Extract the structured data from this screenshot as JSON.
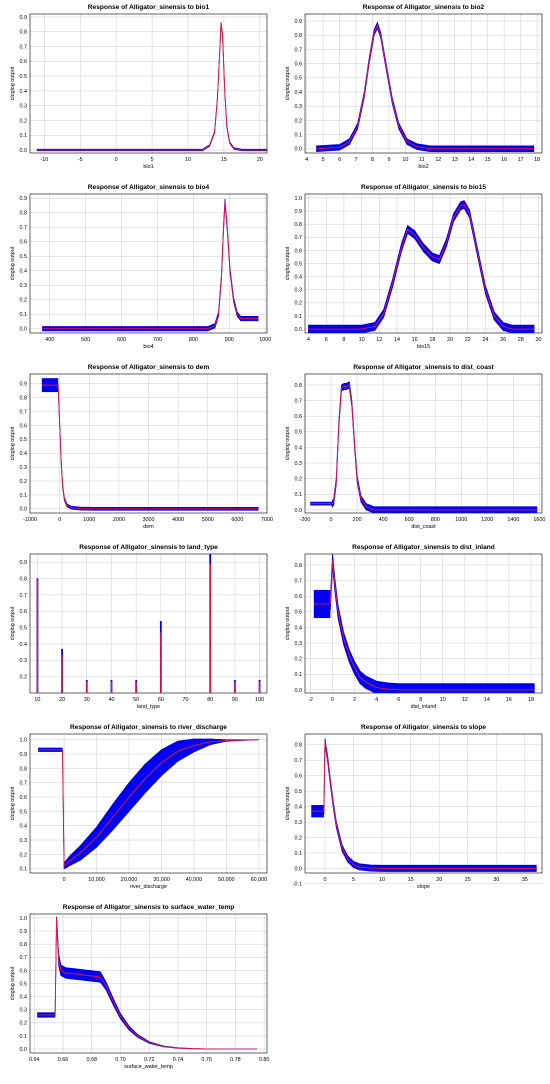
{
  "figure": {
    "species": "Alligator_sinensis",
    "ylabel": "cloglog output"
  },
  "chart_data": [
    {
      "type": "line",
      "title": "Response of Alligator_sinensis to bio1",
      "xlabel": "bio1",
      "ylabel": "cloglog output",
      "xlim": [
        -12,
        21
      ],
      "ylim": [
        -0.02,
        0.92
      ],
      "xticks": [
        -10,
        -5,
        0,
        5,
        10,
        15,
        20
      ],
      "yticks": [
        0.0,
        0.1,
        0.2,
        0.3,
        0.4,
        0.5,
        0.6,
        0.7,
        0.8,
        0.9
      ],
      "series": [
        {
          "x": [
            -11,
            12,
            13,
            13.7,
            14.1,
            14.4,
            14.6,
            14.8,
            15.1,
            15.4,
            15.8,
            16.4,
            17.5,
            21
          ],
          "y": [
            0,
            0,
            0.03,
            0.12,
            0.35,
            0.65,
            0.86,
            0.78,
            0.42,
            0.16,
            0.05,
            0.01,
            0,
            0
          ],
          "band": 0.005
        }
      ]
    },
    {
      "type": "line",
      "title": "Response of Alligator_sinensis to bio2",
      "xlabel": "bio2",
      "ylabel": "cloglog output",
      "xlim": [
        3.9,
        18.3
      ],
      "ylim": [
        -0.03,
        0.95
      ],
      "xticks": [
        4,
        5,
        6,
        7,
        8,
        9,
        10,
        11,
        12,
        13,
        14,
        15,
        16,
        17,
        18
      ],
      "yticks": [
        0.0,
        0.1,
        0.2,
        0.3,
        0.4,
        0.5,
        0.6,
        0.7,
        0.8,
        0.9
      ],
      "series": [
        {
          "x": [
            4.6,
            6,
            6.6,
            7.1,
            7.5,
            7.8,
            8.1,
            8.3,
            8.5,
            8.8,
            9.2,
            9.6,
            10.1,
            10.7,
            11.5,
            17.8
          ],
          "y": [
            0,
            0.01,
            0.05,
            0.16,
            0.38,
            0.62,
            0.82,
            0.87,
            0.8,
            0.6,
            0.34,
            0.16,
            0.05,
            0.015,
            0,
            0
          ],
          "band": 0.02
        }
      ]
    },
    {
      "type": "line",
      "title": "Response of Alligator_sinensis to bio4",
      "xlabel": "bio4",
      "ylabel": "cloglog output",
      "xlim": [
        345,
        1005
      ],
      "ylim": [
        -0.03,
        0.93
      ],
      "xticks": [
        400,
        500,
        600,
        700,
        800,
        900,
        1000
      ],
      "yticks": [
        0.0,
        0.1,
        0.2,
        0.3,
        0.4,
        0.5,
        0.6,
        0.7,
        0.8,
        0.9
      ],
      "series": [
        {
          "x": [
            380,
            840,
            860,
            870,
            878,
            884,
            888,
            894,
            902,
            912,
            922,
            932,
            940,
            980
          ],
          "y": [
            0,
            0,
            0.02,
            0.1,
            0.35,
            0.7,
            0.88,
            0.7,
            0.4,
            0.2,
            0.1,
            0.07,
            0.07,
            0.07
          ],
          "band": 0.015
        }
      ]
    },
    {
      "type": "line",
      "title": "Response of Alligator_sinensis to bio15",
      "xlabel": "bio15",
      "ylabel": "cloglog output",
      "xlim": [
        3.6,
        30.4
      ],
      "ylim": [
        -0.03,
        1.03
      ],
      "xticks": [
        4,
        6,
        8,
        10,
        12,
        14,
        16,
        18,
        20,
        22,
        24,
        26,
        28,
        30
      ],
      "yticks": [
        0.0,
        0.1,
        0.2,
        0.3,
        0.4,
        0.5,
        0.6,
        0.7,
        0.8,
        0.9,
        1.0
      ],
      "series": [
        {
          "x": [
            4,
            10,
            11.5,
            12.5,
            13.5,
            14.5,
            15.2,
            16,
            17,
            18,
            18.8,
            19.6,
            20.4,
            21.2,
            21.6,
            22.2,
            23,
            24,
            25,
            26,
            27,
            29.5
          ],
          "y": [
            0,
            0,
            0.02,
            0.12,
            0.35,
            0.62,
            0.76,
            0.72,
            0.62,
            0.55,
            0.53,
            0.66,
            0.85,
            0.94,
            0.95,
            0.88,
            0.62,
            0.3,
            0.1,
            0.02,
            0,
            0
          ],
          "band": 0.03
        }
      ]
    },
    {
      "type": "line",
      "title": "Response of Alligator_sinensis to dem",
      "xlabel": "dem",
      "ylabel": "cloglog output",
      "xlim": [
        -1000,
        7000
      ],
      "ylim": [
        -0.03,
        0.97
      ],
      "xticks": [
        -1000,
        0,
        1000,
        2000,
        3000,
        4000,
        5000,
        6000,
        7000
      ],
      "yticks": [
        0.0,
        0.1,
        0.2,
        0.3,
        0.4,
        0.5,
        0.6,
        0.7,
        0.8,
        0.9
      ],
      "series": [
        {
          "x": [
            -600,
            -50,
            -50,
            0,
            50,
            100,
            160,
            250,
            400,
            700,
            1200,
            6700
          ],
          "y": [
            0.89,
            0.89,
            0.88,
            0.62,
            0.35,
            0.17,
            0.07,
            0.025,
            0.008,
            0.002,
            0,
            0
          ],
          "band": 0.01,
          "flat_band": {
            "x0": -600,
            "x1": -50,
            "half": 0.05
          }
        }
      ]
    },
    {
      "type": "line",
      "title": "Response of Alligator_sinensis to dist_coast",
      "xlabel": "dist_coast",
      "ylabel": "cloglog output",
      "xlim": [
        -200,
        1620
      ],
      "ylim": [
        -0.02,
        0.87
      ],
      "xticks": [
        -200,
        0,
        200,
        400,
        600,
        800,
        1000,
        1200,
        1400,
        1600
      ],
      "yticks": [
        0.0,
        0.1,
        0.2,
        0.3,
        0.4,
        0.5,
        0.6,
        0.7,
        0.8
      ],
      "series": [
        {
          "x": [
            -160,
            10,
            20,
            40,
            60,
            80,
            100,
            120,
            140,
            160,
            180,
            200,
            230,
            270,
            330,
            1580
          ],
          "y": [
            0.04,
            0.04,
            0.05,
            0.18,
            0.55,
            0.78,
            0.79,
            0.79,
            0.8,
            0.68,
            0.42,
            0.2,
            0.07,
            0.02,
            0,
            0
          ],
          "band": 0.02,
          "flat_band": {
            "x0": -160,
            "x1": 10,
            "half": 0.012
          }
        }
      ]
    },
    {
      "type": "bar",
      "title": "Response of Alligator_sinensis to land_type",
      "xlabel": "land_type",
      "ylabel": "cloglog output",
      "xlim": [
        7,
        103
      ],
      "ylim": [
        0.1,
        0.95
      ],
      "xticks": [
        10,
        20,
        30,
        40,
        50,
        60,
        70,
        80,
        90,
        100
      ],
      "yticks": [
        0.2,
        0.3,
        0.4,
        0.5,
        0.6,
        0.7,
        0.8,
        0.9
      ],
      "categories": [
        10,
        20,
        30,
        40,
        50,
        60,
        80,
        90,
        100
      ],
      "values": [
        0.79,
        0.33,
        0.17,
        0.17,
        0.17,
        0.47,
        0.89,
        0.17,
        0.17
      ],
      "upper": [
        0.8,
        0.37,
        0.18,
        0.18,
        0.18,
        0.54,
        0.95,
        0.18,
        0.18
      ]
    },
    {
      "type": "line",
      "title": "Response of Alligator_sinensis to dist_inland",
      "xlabel": "dist_inland",
      "ylabel": "cloglog output",
      "xlim": [
        -2.5,
        19
      ],
      "ylim": [
        -0.02,
        0.87
      ],
      "xticks": [
        -2,
        0,
        2,
        4,
        6,
        8,
        10,
        12,
        14,
        16,
        18
      ],
      "yticks": [
        0.0,
        0.1,
        0.2,
        0.3,
        0.4,
        0.5,
        0.6,
        0.7,
        0.8
      ],
      "series": [
        {
          "x": [
            -1.7,
            -0.2,
            0,
            0.2,
            0.5,
            1,
            1.5,
            2,
            2.5,
            3,
            4,
            5,
            6,
            18.3
          ],
          "y": [
            0.55,
            0.55,
            0.83,
            0.68,
            0.5,
            0.33,
            0.22,
            0.14,
            0.08,
            0.05,
            0.015,
            0.005,
            0,
            0
          ],
          "band": 0.04,
          "flat_band": {
            "x0": -1.7,
            "x1": -0.2,
            "half": 0.09
          }
        }
      ]
    },
    {
      "type": "line",
      "title": "Response of Alligator_sinensis to river_discharge",
      "xlabel": "river_discharge",
      "ylabel": "cloglog output",
      "xlim": [
        -10500,
        62500
      ],
      "ylim": [
        0.07,
        1.04
      ],
      "xticks": [
        0,
        10000,
        20000,
        30000,
        40000,
        50000,
        60000
      ],
      "xticklabels": [
        "0",
        "10,000",
        "20,000",
        "30,000",
        "40,000",
        "50,000",
        "60,000"
      ],
      "yticks": [
        0.1,
        0.2,
        0.3,
        0.4,
        0.5,
        0.6,
        0.7,
        0.8,
        0.9,
        1.0
      ],
      "series": [
        {
          "x": [
            -8000,
            -500,
            0,
            500,
            2000,
            5000,
            10000,
            15000,
            20000,
            25000,
            30000,
            35000,
            40000,
            45000,
            50000,
            60000
          ],
          "y": [
            0.93,
            0.93,
            0.12,
            0.13,
            0.16,
            0.21,
            0.32,
            0.46,
            0.6,
            0.73,
            0.84,
            0.92,
            0.96,
            0.985,
            0.995,
            1.0
          ],
          "band": [
            0.006,
            0.006,
            0.02,
            0.025,
            0.035,
            0.05,
            0.07,
            0.09,
            0.1,
            0.1,
            0.09,
            0.07,
            0.045,
            0.02,
            0.005,
            0.0
          ],
          "flat_band": {
            "x0": -8000,
            "x1": -500,
            "half": 0.015
          }
        }
      ]
    },
    {
      "type": "line",
      "title": "Response of Alligator_sinensis to slope",
      "xlabel": "slope",
      "ylabel": "cloglog output",
      "xlim": [
        -3.5,
        38
      ],
      "ylim": [
        -0.03,
        0.87
      ],
      "xticks": [
        0,
        5,
        10,
        15,
        20,
        25,
        30,
        35
      ],
      "yticks": [
        -0.1,
        0.0,
        0.1,
        0.2,
        0.3,
        0.4,
        0.5,
        0.6,
        0.7,
        0.8
      ],
      "series": [
        {
          "x": [
            -2.4,
            -0.2,
            0,
            0.5,
            1,
            1.5,
            2,
            3,
            4,
            5,
            6,
            8,
            10,
            37
          ],
          "y": [
            0.37,
            0.37,
            0.82,
            0.7,
            0.54,
            0.4,
            0.28,
            0.13,
            0.06,
            0.025,
            0.01,
            0.002,
            0,
            0
          ],
          "band": 0.02,
          "flat_band": {
            "x0": -2.4,
            "x1": -0.2,
            "half": 0.04
          }
        }
      ]
    },
    {
      "type": "line",
      "title": "Response of Alligator_sinensis to surface_water_temp",
      "xlabel": "surface_water_temp",
      "ylabel": "cloglog output",
      "xlim": [
        0.637,
        0.802
      ],
      "ylim": [
        -0.03,
        1.03
      ],
      "xticks": [
        0.64,
        0.66,
        0.68,
        0.7,
        0.72,
        0.74,
        0.76,
        0.78,
        0.8
      ],
      "xticklabels": [
        "0.64",
        "0.66",
        "0.68",
        "0.70",
        "0.72",
        "0.74",
        "0.76",
        "0.78",
        "0.80"
      ],
      "yticks": [
        0.0,
        0.1,
        0.2,
        0.3,
        0.4,
        0.5,
        0.6,
        0.7,
        0.8,
        0.9,
        1.0
      ],
      "series": [
        {
          "x": [
            0.642,
            0.6545,
            0.6555,
            0.657,
            0.6585,
            0.662,
            0.67,
            0.678,
            0.686,
            0.69,
            0.695,
            0.7,
            0.706,
            0.712,
            0.72,
            0.73,
            0.74,
            0.75,
            0.76,
            0.77,
            0.795
          ],
          "y": [
            0.26,
            0.26,
            1.0,
            0.68,
            0.6,
            0.58,
            0.57,
            0.56,
            0.55,
            0.48,
            0.36,
            0.25,
            0.16,
            0.1,
            0.05,
            0.02,
            0.008,
            0.003,
            0.001,
            0,
            0
          ],
          "band": [
            0.01,
            0.01,
            0.01,
            0.04,
            0.04,
            0.04,
            0.04,
            0.04,
            0.04,
            0.03,
            0.025,
            0.02,
            0.015,
            0.01,
            0.006,
            0.003,
            0.002,
            0.001,
            0,
            0,
            0
          ],
          "flat_band": {
            "x0": 0.642,
            "x1": 0.6545,
            "half": 0.02
          }
        }
      ]
    }
  ],
  "colors": {
    "mean": "#e8163a",
    "band": "#0000ee",
    "grid": "#cccccc",
    "axis": "#000000"
  }
}
